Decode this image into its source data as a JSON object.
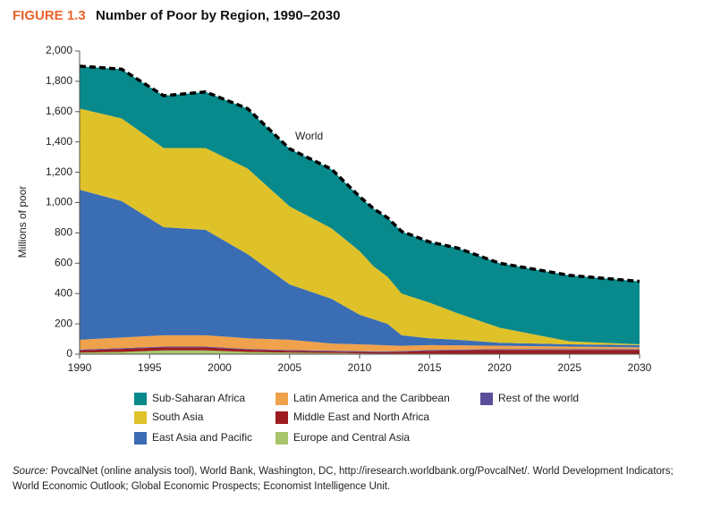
{
  "chart_data": {
    "type": "stacked_area",
    "figure_label": "FIGURE 1.3",
    "title": "Number of Poor by Region, 1990–2030",
    "y_label": "Millions of poor",
    "x": [
      1990,
      1993,
      1996,
      1999,
      2002,
      2005,
      2008,
      2010,
      2011,
      2012,
      2013,
      2015,
      2017,
      2020,
      2025,
      2030
    ],
    "series": [
      {
        "name": "Europe and Central Asia",
        "color": "#a9c56b",
        "values": [
          10,
          15,
          25,
          25,
          15,
          10,
          8,
          5,
          4,
          4,
          4,
          4,
          3,
          3,
          3,
          3
        ]
      },
      {
        "name": "Middle East and North Africa",
        "color": "#9c1c1f",
        "values": [
          15,
          20,
          20,
          20,
          15,
          12,
          10,
          10,
          10,
          10,
          12,
          18,
          22,
          25,
          25,
          25
        ]
      },
      {
        "name": "Rest of the world",
        "color": "#5b4e9b",
        "values": [
          5,
          5,
          5,
          5,
          5,
          5,
          5,
          5,
          5,
          5,
          5,
          5,
          5,
          5,
          5,
          5
        ]
      },
      {
        "name": "Latin America and the Caribbean",
        "color": "#f0a14b",
        "values": [
          65,
          70,
          75,
          75,
          70,
          68,
          47,
          45,
          43,
          39,
          34,
          33,
          28,
          22,
          17,
          12
        ]
      },
      {
        "name": "East Asia and Pacific",
        "color": "#3b6db4",
        "values": [
          990,
          900,
          713,
          695,
          555,
          365,
          295,
          195,
          168,
          142,
          70,
          45,
          37,
          20,
          15,
          15
        ]
      },
      {
        "name": "South Asia",
        "color": "#dfc12a",
        "values": [
          535,
          545,
          522,
          540,
          565,
          515,
          465,
          420,
          350,
          310,
          275,
          235,
          175,
          100,
          20,
          5
        ]
      },
      {
        "name": "Sub-Saharan Africa",
        "color": "#08898b",
        "values": [
          280,
          325,
          345,
          370,
          395,
          380,
          390,
          360,
          380,
          390,
          410,
          400,
          430,
          425,
          435,
          415
        ]
      }
    ],
    "total": {
      "name": "World",
      "color": "#000000",
      "values": [
        1900,
        1880,
        1705,
        1730,
        1620,
        1355,
        1220,
        1040,
        960,
        900,
        810,
        740,
        700,
        600,
        520,
        480
      ]
    },
    "xlim": [
      1990,
      2030
    ],
    "xticks": [
      1990,
      1995,
      2000,
      2005,
      2010,
      2015,
      2020,
      2025,
      2030
    ],
    "ylim": [
      0,
      2000
    ],
    "yticks": [
      0,
      200,
      400,
      600,
      800,
      {
        "value": 1000,
        "label": "1,000"
      },
      {
        "value": 1200,
        "label": "1,200"
      },
      {
        "value": 1400,
        "label": "1,400"
      },
      {
        "value": 1600,
        "label": "1,600"
      },
      {
        "value": 1800,
        "label": "1,800"
      },
      {
        "value": 2000,
        "label": "2,000"
      }
    ],
    "grid": false,
    "source_label": "Source:",
    "source": "PovcalNet (online analysis tool), World Bank, Washington, DC, http://iresearch.worldbank.org/PovcalNet/. World Development Indicators; World Economic Outlook; Global Economic Prospects; Economist Intelligence Unit."
  }
}
